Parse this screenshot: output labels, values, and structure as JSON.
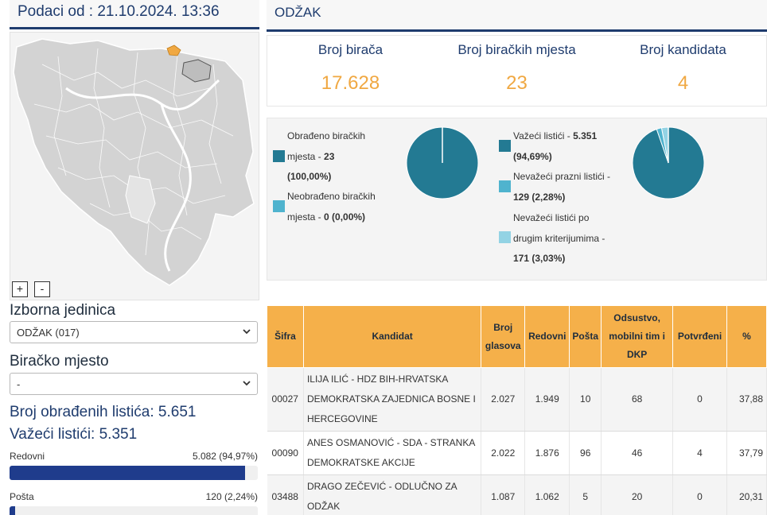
{
  "header": {
    "date_label": "Podaci od : 21.10.2024. 13:36",
    "municipality": "ODŽAK"
  },
  "map": {
    "zoom_in": "+",
    "zoom_out": "-",
    "highlight_color": "#f0a842"
  },
  "filters": {
    "unit_label": "Izborna jedinica",
    "unit_value": "ODŽAK (017)",
    "station_label": "Biračko mjesto",
    "station_value": "-"
  },
  "stats": {
    "processed": "Broj obrađenih listića: 5.651",
    "valid": "Važeći listići: 5.351",
    "bars": [
      {
        "label": "Redovni",
        "value": "5.082 (94,97%)",
        "percent": 94.97
      },
      {
        "label": "Pošta",
        "value": "120 (2,24%)",
        "percent": 2.24
      }
    ]
  },
  "summary": {
    "voters_label": "Broj birača",
    "voters": "17.628",
    "stations_label": "Broj biračkih mjesta",
    "stations": "23",
    "candidates_label": "Broj kandidata",
    "candidates": "4"
  },
  "pie1": {
    "processed_a": "Obrađeno biračkih",
    "processed_b": "mjesta - ",
    "processed_val": "23",
    "processed_pct": "(100,00%)",
    "unprocessed_a": "Neobrađeno biračkih",
    "unprocessed_b": "mjesta - ",
    "unprocessed_val": "0 (0,00%)",
    "slices": [
      100,
      0
    ]
  },
  "pie2": {
    "valid_a": "Važeći listići - ",
    "valid_val": "5.351",
    "valid_pct": "(94,69%)",
    "blank_a": "Nevažeći prazni listići -",
    "blank_val": "129 (2,28%)",
    "other_a": "Nevažeći listići po",
    "other_b": "drugim kriterijumima -",
    "other_val": "171 (3,03%)",
    "slices": [
      94.69,
      2.28,
      3.03
    ]
  },
  "colors": {
    "dark": "#237a93",
    "mid": "#4fb3ce",
    "light": "#93d3e4",
    "orange": "#f0a842",
    "navy": "#1f3c6e"
  },
  "table": {
    "headers": [
      "Šifra",
      "Kandidat",
      "Broj glasova",
      "Redovni",
      "Pošta",
      "Odsustvo, mobilni tim i DKP",
      "Potvrđeni",
      "%"
    ],
    "rows": [
      {
        "code": "00027",
        "name": "ILIJA ILIĆ - HDZ BIH-HRVATSKA DEMOKRATSKA ZAJEDNICA BOSNE I HERCEGOVINE",
        "votes": "2.027",
        "regular": "1.949",
        "post": "10",
        "absent": "68",
        "confirmed": "0",
        "pct": "37,88"
      },
      {
        "code": "00090",
        "name": "ANES OSMANOVIĆ - SDA - STRANKA DEMOKRATSKE AKCIJE",
        "votes": "2.022",
        "regular": "1.876",
        "post": "96",
        "absent": "46",
        "confirmed": "4",
        "pct": "37,79"
      },
      {
        "code": "03488",
        "name": "DRAGO ZEČEVIĆ - ODLUČNO ZA ODŽAK",
        "votes": "1.087",
        "regular": "1.062",
        "post": "5",
        "absent": "20",
        "confirmed": "0",
        "pct": "20,31"
      }
    ]
  }
}
